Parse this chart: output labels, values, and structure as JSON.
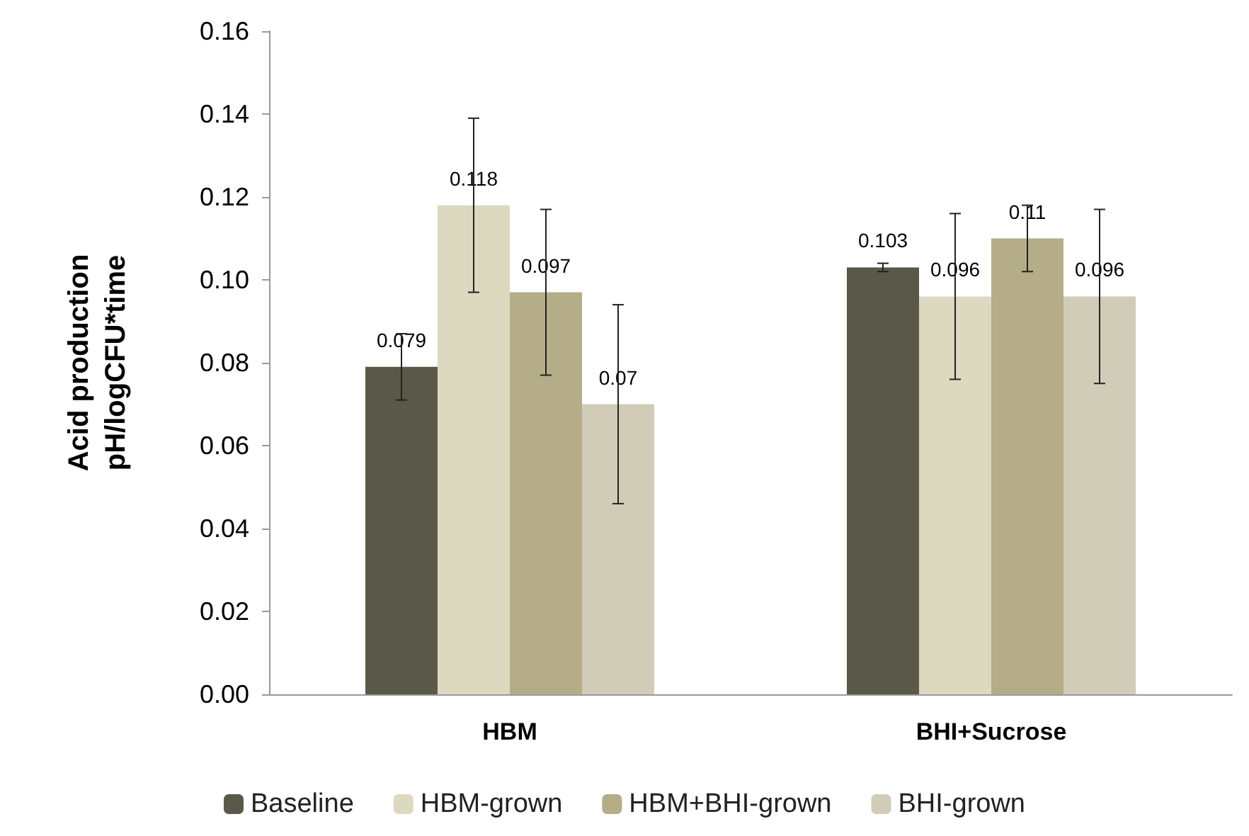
{
  "chart_data": {
    "type": "bar",
    "ylabel": "Acid production\npH/logCFU*time",
    "categories": [
      "HBM",
      "BHI+Sucrose"
    ],
    "series": [
      {
        "name": "Baseline",
        "color": "#5a5848",
        "values": [
          0.079,
          0.103
        ],
        "errors": [
          0.008,
          0.001
        ]
      },
      {
        "name": "HBM-grown",
        "color": "#ddd8c0",
        "values": [
          0.118,
          0.096
        ],
        "errors": [
          0.021,
          0.02
        ]
      },
      {
        "name": "HBM+BHI-grown",
        "color": "#b5ad88",
        "values": [
          0.097,
          0.11
        ],
        "errors": [
          0.02,
          0.008
        ]
      },
      {
        "name": "BHI-grown",
        "color": "#d0ccb8",
        "values": [
          0.07,
          0.096
        ],
        "errors": [
          0.024,
          0.021
        ]
      }
    ],
    "ylim": [
      0,
      0.16
    ],
    "yticks": [
      {
        "value": 0,
        "label": "0.00"
      },
      {
        "value": 0.02,
        "label": "0.02"
      },
      {
        "value": 0.04,
        "label": "0.04"
      },
      {
        "value": 0.06,
        "label": "0.06"
      },
      {
        "value": 0.08,
        "label": "0.08"
      },
      {
        "value": 0.1,
        "label": "0.10"
      },
      {
        "value": 0.12,
        "label": "0.12"
      },
      {
        "value": 0.14,
        "label": "0.14"
      },
      {
        "value": 0.16,
        "label": "0.16"
      }
    ],
    "data_labels": true,
    "grid": false,
    "legend": "bottom"
  }
}
